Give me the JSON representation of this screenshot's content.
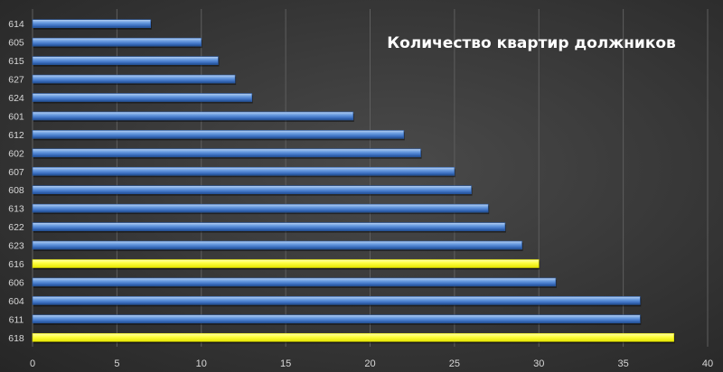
{
  "chart_data": {
    "type": "bar",
    "orientation": "horizontal",
    "title": "Количество квартир должников",
    "categories": [
      "614",
      "605",
      "615",
      "627",
      "624",
      "601",
      "612",
      "602",
      "607",
      "608",
      "613",
      "622",
      "623",
      "616",
      "606",
      "604",
      "611",
      "618"
    ],
    "values": [
      7,
      10,
      11,
      12,
      13,
      19,
      22,
      23,
      25,
      26,
      27,
      28,
      29,
      30,
      31,
      36,
      36,
      38
    ],
    "highlighted": [
      "616",
      "618"
    ],
    "xlim": [
      0,
      40
    ],
    "xticks": [
      0,
      5,
      10,
      15,
      20,
      25,
      30,
      35,
      40
    ],
    "xlabel": "",
    "ylabel": "",
    "grid": "vertical",
    "legend": "none",
    "colors": {
      "bar": "#4f86d3",
      "highlight": "#ffff33",
      "grid": "#5e5e5e",
      "text": "#d8d8d8",
      "title": "#ffffff"
    }
  }
}
